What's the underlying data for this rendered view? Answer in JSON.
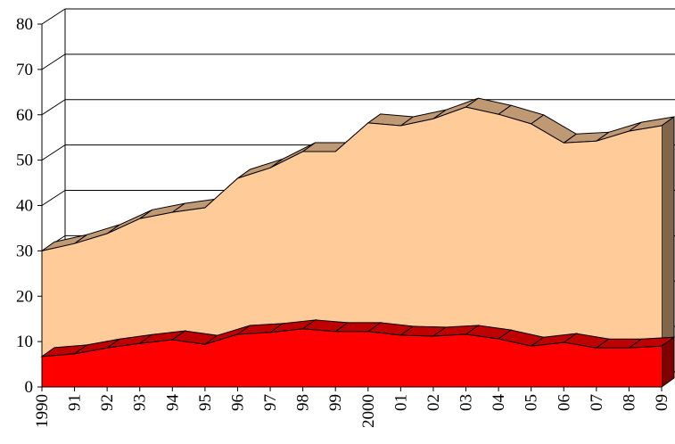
{
  "chart_data": {
    "type": "area3d",
    "categories": [
      "1990",
      "91",
      "92",
      "93",
      "94",
      "95",
      "96",
      "97",
      "98",
      "99",
      "2000",
      "01",
      "02",
      "03",
      "04",
      "05",
      "06",
      "07",
      "08",
      "09"
    ],
    "series": [
      {
        "color": "#ff0000",
        "values": [
          6.7,
          7.3,
          8.6,
          9.6,
          10.4,
          9.4,
          11.6,
          12,
          12.8,
          12.2,
          12.2,
          11.4,
          11.2,
          11.6,
          10.6,
          9,
          9.8,
          8.6,
          8.6,
          9
        ]
      },
      {
        "color": "#ffcc99",
        "values": [
          23.3,
          24.3,
          25.2,
          27.5,
          28.1,
          30.1,
          34.4,
          36.3,
          39.1,
          39.7,
          46,
          46.2,
          47.9,
          50.1,
          49.5,
          49,
          44,
          45.6,
          47.8,
          48.6
        ]
      }
    ],
    "stacked": true,
    "ylim": [
      0,
      80
    ],
    "yticks": [
      0,
      10,
      20,
      30,
      40,
      50,
      60,
      70,
      80
    ],
    "grid": true
  }
}
